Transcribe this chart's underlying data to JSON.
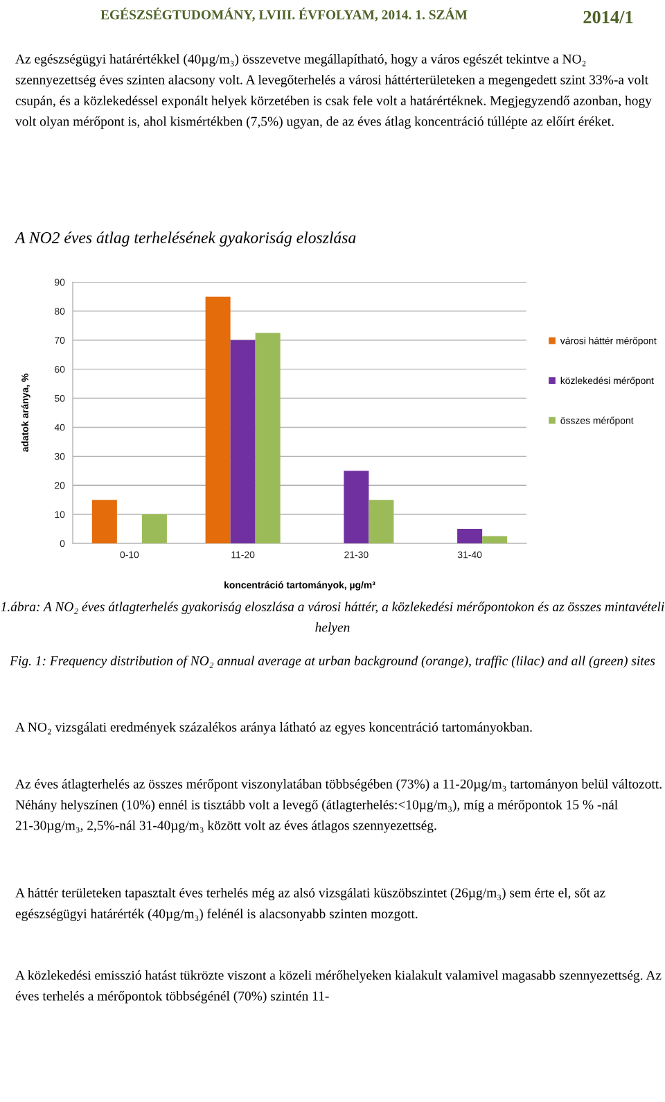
{
  "chart_data": {
    "type": "bar",
    "title": "A NO2 éves átlag terhelésének gyakoriság eloszlása",
    "xlabel": "koncentráció tartományok, µg/m³",
    "ylabel": "adatok aránya, %",
    "categories": [
      "0-10",
      "11-20",
      "21-30",
      "31-40"
    ],
    "series": [
      {
        "name": "városi háttér mérőpont",
        "color": "#e46c0a",
        "values": [
          15,
          85,
          0,
          0
        ]
      },
      {
        "name": "közlekedési mérőpont",
        "color": "#7030a0",
        "values": [
          0,
          70,
          25,
          5
        ]
      },
      {
        "name": "összes mérőpont",
        "color": "#9bbb59",
        "values": [
          10,
          72.5,
          15,
          2.5
        ]
      }
    ],
    "ylim": [
      0,
      90
    ],
    "yticks": [
      0,
      10,
      20,
      30,
      40,
      50,
      60,
      70,
      80,
      90
    ],
    "grid": "y",
    "legend": "right",
    "annotations": [
      "EGÉSZSÉGTUDOMÁNY, LVIII. ÉVFOLYAM, 2014. 1. SZÁM",
      "2014/1",
      "Az egészségügyi határértékkel (40µg/m₃) összevetve megállapítható, hogy a város egészét tekintve a NO₂ szennyezettség éves szinten alacsony volt. A levegőterhelés a városi háttérterületeken a megengedett szint 33%-a volt csupán, és a közlekedéssel exponált helyek körzetében is csak fele volt a határértéknek. Megjegyzendő azonban, hogy volt olyan mérőpont is, ahol kismértékben (7,5%) ugyan, de az éves átlag koncentráció túllépte az előírt éréket.",
      "1.ábra: A NO₂ éves átlagterhelés gyakoriság eloszlása a városi háttér, a közlekedési mérőpontokon és az összes mintavételi helyen",
      "Fig. 1: Frequency distribution of NO₂ annual average at urban background (orange), traffic (lilac) and all (green) sites",
      "A NO₂ vizsgálati eredmények százalékos aránya látható az egyes koncentráció tartományokban.",
      "Az éves átlagterhelés az összes mérőpont viszonylatában többségében (73%) a 11-20µg/m₃ tartományon belül változott. Néhány helyszínen (10%) ennél is tisztább volt a levegő (átlagterhelés:<10µg/m₃), míg a mérőpontok 15 % -nál 21-30µg/m₃, 2,5%-nál 31-40µg/m₃ között volt az éves átlagos szennyezettség.",
      "A háttér területeken tapasztalt éves terhelés még az alsó vizsgálati küszöbszintet (26µg/m₃) sem érte el, sőt az egészségügyi határérték (40µg/m₃) felénél is alacsonyabb szinten mozgott.",
      "A közlekedési emisszió hatást tükrözte viszont a közeli mérőhelyeken kialakult valamivel magasabb szennyezettség. Az éves terhelés a mérőpontok többségénél (70%) szintén 11-"
    ]
  }
}
